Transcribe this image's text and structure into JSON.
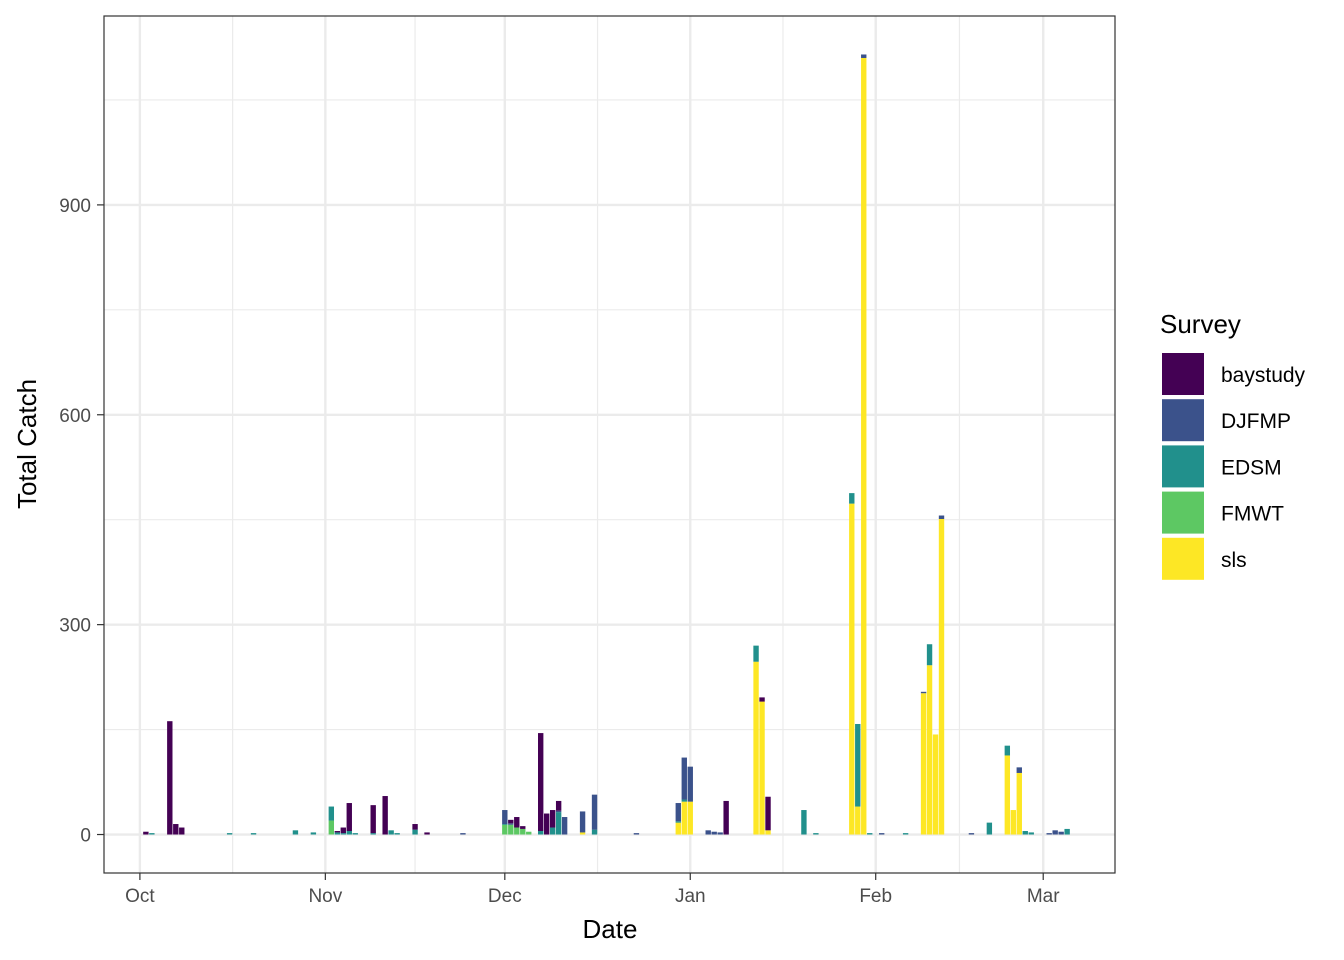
{
  "chart_data": {
    "type": "bar",
    "stacked": true,
    "xlabel": "Date",
    "ylabel": "Total Catch",
    "x_ticks": [
      "Oct",
      "Nov",
      "Dec",
      "Jan",
      "Feb",
      "Mar"
    ],
    "x_tick_dates": [
      "2020-10-01",
      "2020-11-01",
      "2020-12-01",
      "2021-01-01",
      "2021-02-01",
      "2021-03-01"
    ],
    "y_ticks": [
      0,
      300,
      600,
      900
    ],
    "xlim": [
      "2020-09-25",
      "2021-03-13"
    ],
    "ylim": [
      -55,
      1170
    ],
    "grid": true,
    "legend": {
      "title": "Survey",
      "position": "right",
      "entries": [
        "baystudy",
        "DJFMP",
        "EDSM",
        "FMWT",
        "sls"
      ]
    },
    "colors": {
      "baystudy": "#440154",
      "DJFMP": "#3B528B",
      "EDSM": "#21908C",
      "FMWT": "#5DC863",
      "sls": "#FDE725"
    },
    "series": [
      "baystudy",
      "DJFMP",
      "EDSM",
      "FMWT",
      "sls"
    ],
    "bars": [
      {
        "date": "2020-10-02",
        "baystudy": 4
      },
      {
        "date": "2020-10-03",
        "EDSM": 2
      },
      {
        "date": "2020-10-06",
        "baystudy": 162
      },
      {
        "date": "2020-10-07",
        "baystudy": 15
      },
      {
        "date": "2020-10-08",
        "baystudy": 10
      },
      {
        "date": "2020-10-16",
        "EDSM": 2
      },
      {
        "date": "2020-10-20",
        "EDSM": 2
      },
      {
        "date": "2020-10-27",
        "EDSM": 6
      },
      {
        "date": "2020-10-30",
        "EDSM": 3
      },
      {
        "date": "2020-11-02",
        "EDSM": 20,
        "FMWT": 20
      },
      {
        "date": "2020-11-03",
        "baystudy": 2,
        "EDSM": 3
      },
      {
        "date": "2020-11-04",
        "baystudy": 8,
        "EDSM": 2
      },
      {
        "date": "2020-11-05",
        "baystudy": 40,
        "EDSM": 5
      },
      {
        "date": "2020-11-06",
        "EDSM": 2
      },
      {
        "date": "2020-11-09",
        "baystudy": 40,
        "EDSM": 2
      },
      {
        "date": "2020-11-11",
        "baystudy": 55
      },
      {
        "date": "2020-11-12",
        "EDSM": 6
      },
      {
        "date": "2020-11-13",
        "EDSM": 2
      },
      {
        "date": "2020-11-16",
        "baystudy": 8,
        "EDSM": 7
      },
      {
        "date": "2020-11-18",
        "baystudy": 3
      },
      {
        "date": "2020-11-24",
        "DJFMP": 2
      },
      {
        "date": "2020-12-01",
        "DJFMP": 20,
        "EDSM": 1,
        "FMWT": 14
      },
      {
        "date": "2020-12-02",
        "baystudy": 5,
        "DJFMP": 2,
        "FMWT": 14
      },
      {
        "date": "2020-12-03",
        "baystudy": 15,
        "FMWT": 10
      },
      {
        "date": "2020-12-04",
        "baystudy": 4,
        "FMWT": 8
      },
      {
        "date": "2020-12-05",
        "FMWT": 4
      },
      {
        "date": "2020-12-07",
        "baystudy": 140,
        "EDSM": 5
      },
      {
        "date": "2020-12-08",
        "baystudy": 30
      },
      {
        "date": "2020-12-09",
        "baystudy": 25,
        "EDSM": 10
      },
      {
        "date": "2020-12-10",
        "baystudy": 14,
        "DJFMP": 2,
        "EDSM": 32
      },
      {
        "date": "2020-12-11",
        "DJFMP": 25
      },
      {
        "date": "2020-12-14",
        "DJFMP": 30,
        "sls": 3
      },
      {
        "date": "2020-12-16",
        "DJFMP": 50,
        "EDSM": 7
      },
      {
        "date": "2020-12-23",
        "DJFMP": 2
      },
      {
        "date": "2020-12-30",
        "DJFMP": 26,
        "EDSM": 2,
        "sls": 17
      },
      {
        "date": "2020-12-31",
        "DJFMP": 60,
        "EDSM": 3,
        "sls": 47
      },
      {
        "date": "2021-01-01",
        "DJFMP": 50,
        "sls": 47
      },
      {
        "date": "2021-01-04",
        "DJFMP": 6
      },
      {
        "date": "2021-01-05",
        "DJFMP": 4
      },
      {
        "date": "2021-01-06",
        "DJFMP": 3
      },
      {
        "date": "2021-01-07",
        "baystudy": 48
      },
      {
        "date": "2021-01-12",
        "EDSM": 23,
        "sls": 247
      },
      {
        "date": "2021-01-13",
        "baystudy": 6,
        "sls": 190
      },
      {
        "date": "2021-01-14",
        "baystudy": 48,
        "sls": 6
      },
      {
        "date": "2021-01-20",
        "EDSM": 35
      },
      {
        "date": "2021-01-22",
        "EDSM": 2
      },
      {
        "date": "2021-01-28",
        "EDSM": 15,
        "sls": 473
      },
      {
        "date": "2021-01-29",
        "EDSM": 118,
        "sls": 40
      },
      {
        "date": "2021-01-30",
        "DJFMP": 5,
        "sls": 1110
      },
      {
        "date": "2021-01-31",
        "EDSM": 2
      },
      {
        "date": "2021-02-02",
        "DJFMP": 2
      },
      {
        "date": "2021-02-06",
        "EDSM": 2
      },
      {
        "date": "2021-02-09",
        "DJFMP": 2,
        "sls": 202
      },
      {
        "date": "2021-02-10",
        "EDSM": 30,
        "sls": 242
      },
      {
        "date": "2021-02-11",
        "sls": 143
      },
      {
        "date": "2021-02-12",
        "DJFMP": 5,
        "sls": 451
      },
      {
        "date": "2021-02-17",
        "DJFMP": 2
      },
      {
        "date": "2021-02-20",
        "EDSM": 17
      },
      {
        "date": "2021-02-23",
        "EDSM": 14,
        "sls": 113
      },
      {
        "date": "2021-02-24",
        "sls": 35
      },
      {
        "date": "2021-02-25",
        "DJFMP": 8,
        "sls": 88
      },
      {
        "date": "2021-02-26",
        "EDSM": 5
      },
      {
        "date": "2021-02-27",
        "EDSM": 3
      },
      {
        "date": "2021-03-02",
        "DJFMP": 2
      },
      {
        "date": "2021-03-03",
        "DJFMP": 6
      },
      {
        "date": "2021-03-04",
        "DJFMP": 4
      },
      {
        "date": "2021-03-05",
        "EDSM": 8
      }
    ]
  }
}
